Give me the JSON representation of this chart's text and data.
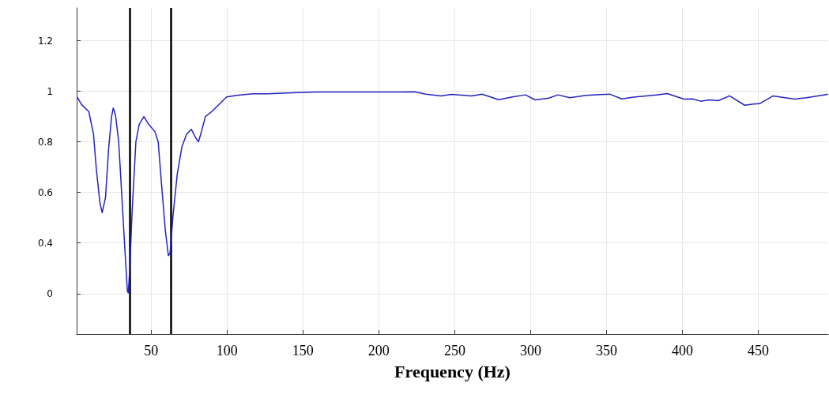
{
  "chart_data": {
    "type": "line",
    "xlabel": "Frequency (Hz)",
    "xlim": [
      1,
      496
    ],
    "xticks": [
      50,
      100,
      150,
      200,
      250,
      300,
      350,
      400,
      450
    ],
    "ylim": [
      0.04,
      1.33
    ],
    "yticks": [
      {
        "value": 0.2,
        "label": "0"
      },
      0.4,
      0.6,
      0.8,
      1,
      1.2
    ],
    "grid": true,
    "marker": "none",
    "line_style": "solid",
    "ref_lines": [
      {
        "axis": "x",
        "value": 36,
        "color": "#000000"
      },
      {
        "axis": "x",
        "value": 63,
        "color": "#000000"
      }
    ],
    "series": [
      {
        "color": "#2323c0",
        "x": [
          1.5,
          4.3,
          9,
          12.1,
          14,
          16.3,
          17.8,
          20,
          22,
          24,
          25.1,
          26.6,
          28.7,
          30.8,
          32.9,
          34.4,
          35,
          36,
          37.5,
          40,
          42.2,
          45.3,
          48.4,
          52.6,
          54.7,
          56.8,
          59.4,
          61.4,
          62.5,
          64.5,
          67.2,
          70.3,
          73.4,
          76.5,
          79,
          81.2,
          82.7,
          85.8,
          90,
          95,
          99.8,
          106.5,
          117,
          127,
          143,
          158.5,
          184.5,
          200,
          223.5,
          231,
          241,
          248,
          261,
          268,
          279,
          288,
          296.6,
          303,
          312,
          318,
          325.8,
          336.6,
          352,
          360,
          367.8,
          383,
          390,
          401,
          406.6,
          412,
          417.6,
          423.6,
          431,
          441,
          446.8,
          450.8,
          459.7,
          467.5,
          474,
          481,
          495.5
        ],
        "values": [
          0.976,
          0.947,
          0.92,
          0.83,
          0.69,
          0.56,
          0.52,
          0.58,
          0.77,
          0.9,
          0.934,
          0.905,
          0.8,
          0.58,
          0.36,
          0.21,
          0.203,
          0.3,
          0.52,
          0.8,
          0.87,
          0.9,
          0.87,
          0.84,
          0.8,
          0.64,
          0.45,
          0.35,
          0.36,
          0.51,
          0.67,
          0.78,
          0.83,
          0.85,
          0.82,
          0.8,
          0.83,
          0.9,
          0.92,
          0.95,
          0.978,
          0.984,
          0.99,
          0.99,
          0.994,
          0.997,
          0.997,
          0.997,
          0.998,
          0.989,
          0.982,
          0.988,
          0.982,
          0.989,
          0.967,
          0.978,
          0.986,
          0.966,
          0.973,
          0.986,
          0.975,
          0.984,
          0.989,
          0.97,
          0.977,
          0.986,
          0.991,
          0.969,
          0.97,
          0.961,
          0.966,
          0.963,
          0.982,
          0.945,
          0.95,
          0.951,
          0.982,
          0.975,
          0.969,
          0.974,
          0.988
        ]
      }
    ]
  }
}
